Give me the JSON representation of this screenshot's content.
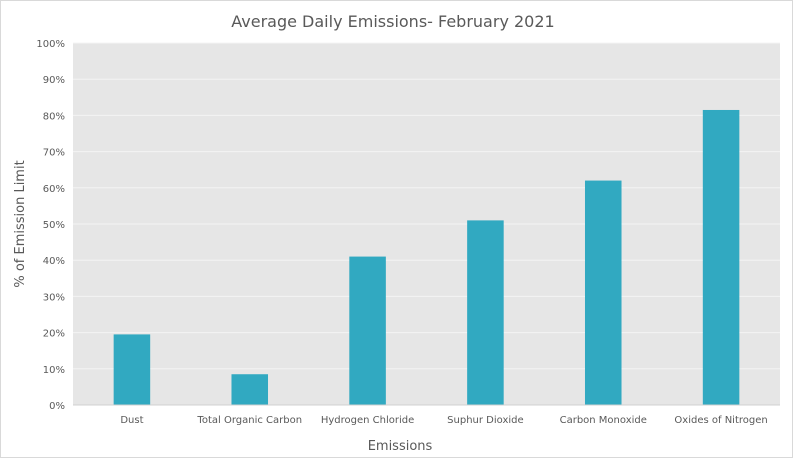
{
  "chart_data": {
    "type": "bar",
    "title": "Average Daily Emissions- February 2021",
    "xlabel": "Emissions",
    "ylabel": "% of Emission Limit",
    "categories": [
      "Dust",
      "Total Organic Carbon",
      "Hydrogen Chloride",
      "Suphur Dioxide",
      "Carbon  Monoxide",
      "Oxides of Nitrogen"
    ],
    "values": [
      19.5,
      8.5,
      41,
      51,
      62,
      81.5
    ],
    "ylim": [
      0,
      100
    ],
    "yticks": [
      0,
      10,
      20,
      30,
      40,
      50,
      60,
      70,
      80,
      90,
      100
    ],
    "ytick_labels": [
      "0%",
      "10%",
      "20%",
      "30%",
      "40%",
      "50%",
      "60%",
      "70%",
      "80%",
      "90%",
      "100%"
    ],
    "grid": true,
    "legend": "none",
    "colors": {
      "bar": "#31a9c1",
      "plot_bg": "#e6e6e6",
      "grid": "#f4f4f4",
      "text": "#595959"
    }
  }
}
